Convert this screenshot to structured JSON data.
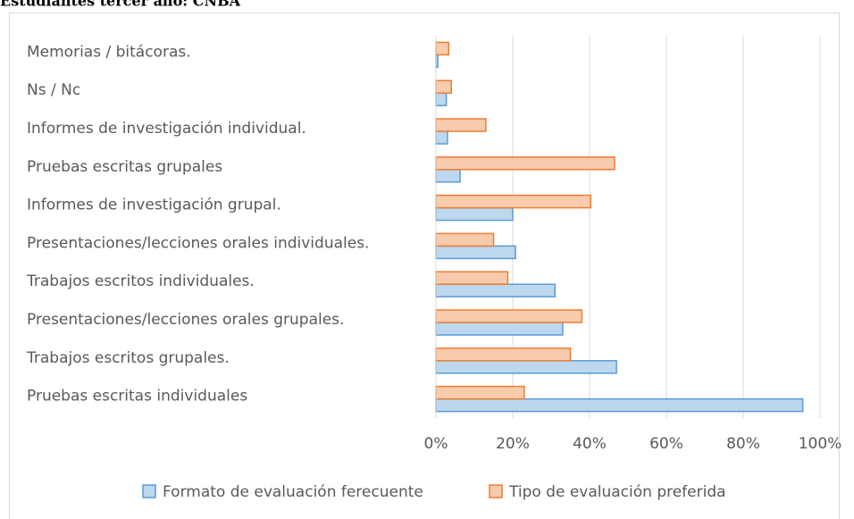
{
  "chart_data": {
    "type": "hbar",
    "title": "Estudiantes tercer año: CNBA",
    "categories": [
      "Memorias / bitácoras.",
      "Ns / Nc",
      "Informes de investigación individual.",
      "Pruebas escritas grupales",
      "Informes de investigación grupal.",
      "Presentaciones/lecciones orales individuales.",
      "Trabajos escritos  individuales.",
      "Presentaciones/lecciones orales grupales.",
      "Trabajos escritos grupales.",
      "Pruebas escritas individuales"
    ],
    "series": [
      {
        "name": "Formato de evaluación ferecuente",
        "color": "#bdd7ee",
        "stroke": "#5b9bd5",
        "values": [
          0.5,
          2.7,
          3,
          6.3,
          20,
          20.7,
          31,
          33,
          47,
          95.5
        ]
      },
      {
        "name": "Tipo de evaluación preferida",
        "color": "#f8cbad",
        "stroke": "#ed7d31",
        "values": [
          3.3,
          4,
          13,
          46.5,
          40.3,
          15,
          18.7,
          38,
          35,
          23
        ]
      }
    ],
    "xlim": [
      0,
      100
    ],
    "xticks": [
      {
        "value": 0,
        "label": "0%"
      },
      {
        "value": 20,
        "label": "20%"
      },
      {
        "value": 40,
        "label": "40%"
      },
      {
        "value": 60,
        "label": "60%"
      },
      {
        "value": 80,
        "label": "80%"
      },
      {
        "value": 100,
        "label": "100%"
      }
    ],
    "grid": true,
    "legend": "bottom"
  }
}
